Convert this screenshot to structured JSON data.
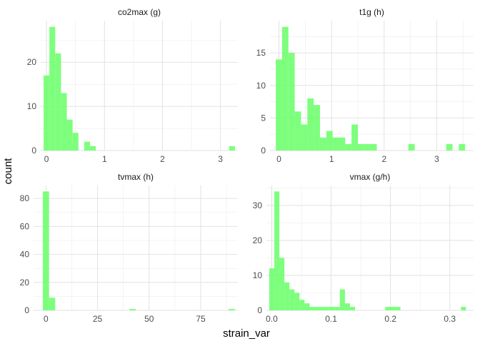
{
  "figure": {
    "xlabel": "strain_var",
    "ylabel": "count"
  },
  "chart_data": [
    {
      "type": "bar",
      "title": "co2max (g)",
      "bar_color": "#66FF66",
      "binwidth": 0.1,
      "xlim": [
        -0.1,
        3.3
      ],
      "ylim": [
        0,
        29.4
      ],
      "xticks": [
        0,
        1,
        2,
        3
      ],
      "yticks": [
        0,
        10,
        20
      ],
      "bins": [
        {
          "x": 0.0,
          "count": 17
        },
        {
          "x": 0.1,
          "count": 28
        },
        {
          "x": 0.2,
          "count": 22
        },
        {
          "x": 0.3,
          "count": 13
        },
        {
          "x": 0.4,
          "count": 7
        },
        {
          "x": 0.5,
          "count": 4
        },
        {
          "x": 0.7,
          "count": 2
        },
        {
          "x": 0.8,
          "count": 1
        },
        {
          "x": 3.2,
          "count": 1
        }
      ]
    },
    {
      "type": "bar",
      "title": "t1g (h)",
      "bar_color": "#66FF66",
      "binwidth": 0.12,
      "xlim": [
        -0.17,
        3.7
      ],
      "ylim": [
        0,
        19.95
      ],
      "xticks": [
        0,
        1,
        2,
        3
      ],
      "yticks": [
        0,
        5,
        10,
        15
      ],
      "bins": [
        {
          "x": 0.0,
          "count": 14
        },
        {
          "x": 0.12,
          "count": 19
        },
        {
          "x": 0.24,
          "count": 15
        },
        {
          "x": 0.36,
          "count": 6
        },
        {
          "x": 0.48,
          "count": 4
        },
        {
          "x": 0.6,
          "count": 8
        },
        {
          "x": 0.72,
          "count": 7
        },
        {
          "x": 0.84,
          "count": 2
        },
        {
          "x": 0.96,
          "count": 3
        },
        {
          "x": 1.08,
          "count": 2
        },
        {
          "x": 1.2,
          "count": 2
        },
        {
          "x": 1.32,
          "count": 1
        },
        {
          "x": 1.44,
          "count": 4
        },
        {
          "x": 1.56,
          "count": 1
        },
        {
          "x": 1.68,
          "count": 1
        },
        {
          "x": 1.8,
          "count": 1
        },
        {
          "x": 2.52,
          "count": 1
        },
        {
          "x": 3.24,
          "count": 1
        },
        {
          "x": 3.48,
          "count": 1
        }
      ]
    },
    {
      "type": "bar",
      "title": "tvmax (h)",
      "bar_color": "#66FF66",
      "binwidth": 3.0,
      "xlim": [
        -6,
        93
      ],
      "ylim": [
        0,
        89.25
      ],
      "xticks": [
        0,
        25,
        50,
        75
      ],
      "yticks": [
        0,
        20,
        40,
        60,
        80
      ],
      "bins": [
        {
          "x": 0,
          "count": 85
        },
        {
          "x": 3,
          "count": 9
        },
        {
          "x": 42,
          "count": 1
        },
        {
          "x": 90,
          "count": 1
        }
      ]
    },
    {
      "type": "bar",
      "title": "vmax (g/h)",
      "bar_color": "#66FF66",
      "binwidth": 0.0085,
      "xlim": [
        -0.009,
        0.34
      ],
      "ylim": [
        0,
        35.7
      ],
      "xticks": [
        0.0,
        0.1,
        0.2,
        0.3
      ],
      "xtick_labels": [
        "0.0",
        "0.1",
        "0.2",
        "0.3"
      ],
      "yticks": [
        0,
        10,
        20,
        30
      ],
      "bins": [
        {
          "x": 0.0,
          "count": 12
        },
        {
          "x": 0.0085,
          "count": 34
        },
        {
          "x": 0.017,
          "count": 15
        },
        {
          "x": 0.0255,
          "count": 8
        },
        {
          "x": 0.034,
          "count": 6
        },
        {
          "x": 0.0425,
          "count": 5
        },
        {
          "x": 0.051,
          "count": 3
        },
        {
          "x": 0.0595,
          "count": 2
        },
        {
          "x": 0.068,
          "count": 1
        },
        {
          "x": 0.0765,
          "count": 1
        },
        {
          "x": 0.085,
          "count": 1
        },
        {
          "x": 0.0935,
          "count": 1
        },
        {
          "x": 0.102,
          "count": 1
        },
        {
          "x": 0.1105,
          "count": 1
        },
        {
          "x": 0.119,
          "count": 6
        },
        {
          "x": 0.1275,
          "count": 2
        },
        {
          "x": 0.136,
          "count": 1
        },
        {
          "x": 0.1955,
          "count": 1
        },
        {
          "x": 0.204,
          "count": 1
        },
        {
          "x": 0.2125,
          "count": 1
        },
        {
          "x": 0.323,
          "count": 1
        }
      ]
    }
  ]
}
